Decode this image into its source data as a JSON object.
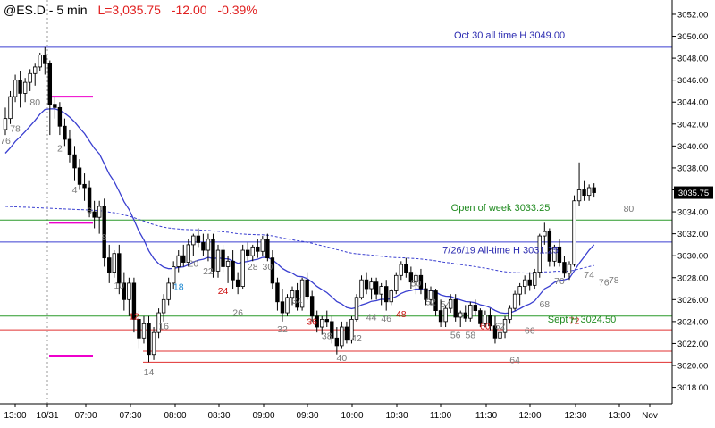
{
  "header": {
    "symbol": "@ES.D - 5 min",
    "last": "L=3,035.75",
    "change": "-12.00",
    "pct": "-0.39%"
  },
  "chart_data": {
    "type": "candlestick",
    "ylim": [
      3016.5,
      3053.3
    ],
    "y_ticks": [
      3018,
      3020,
      3022,
      3024,
      3026,
      3028,
      3030,
      3032,
      3034,
      3036,
      3038,
      3040,
      3042,
      3044,
      3046,
      3048,
      3050,
      3052
    ],
    "x_ticks": [
      "13:00",
      "10/31",
      "07:00",
      "07:30",
      "08:00",
      "08:30",
      "09:00",
      "09:30",
      "10:00",
      "10:30",
      "11:00",
      "11:30",
      "12:00",
      "12:30",
      "13:00",
      "Nov"
    ],
    "last_price_label": "3035.75",
    "colors": {
      "up": "#ffffff",
      "down": "#000000",
      "ema": "#3a3fd0",
      "pivot": "#ee00cc",
      "blue_line": "#3a3fd0",
      "green_line": "#2a9a2a",
      "red_line": "#e03030",
      "bar_label": "#7a7a7a",
      "red_label": "#cc1111",
      "blue_label": "#1a86d0"
    },
    "annotations": [
      {
        "text": "Oct 30 all time H 3049.00",
        "price": 3049.0,
        "color": "blue"
      },
      {
        "text": "Open of week 3033.25",
        "price": 3033.25,
        "color": "green"
      },
      {
        "text": "7/26/19 All-time H 3031.25",
        "price": 3031.25,
        "color": "blue"
      },
      {
        "text": "Sept H 3024.50",
        "price": 3024.5,
        "color": "green"
      }
    ],
    "bar_labels": [
      {
        "t": "76",
        "c": "g",
        "i": 0,
        "p": 3040.2
      },
      {
        "t": "78",
        "c": "g",
        "i": 2,
        "p": 3041.3
      },
      {
        "t": "80",
        "c": "g",
        "i": 6,
        "p": 3043.7
      },
      {
        "t": "2",
        "c": "g",
        "i": 11,
        "p": 3039.5
      },
      {
        "t": "4",
        "c": "g",
        "i": 14,
        "p": 3035.7
      },
      {
        "t": "6",
        "c": "g",
        "i": 17,
        "p": 3033.8
      },
      {
        "t": "8",
        "c": "g",
        "i": 20,
        "p": 3031.4
      },
      {
        "t": "10",
        "c": "g",
        "i": 23,
        "p": 3027.0
      },
      {
        "t": "12",
        "c": "r",
        "i": 26,
        "p": 3024.2
      },
      {
        "t": "14",
        "c": "g",
        "i": 29,
        "p": 3019.1
      },
      {
        "t": "16",
        "c": "g",
        "i": 32,
        "p": 3023.3
      },
      {
        "t": "18",
        "c": "b",
        "i": 35,
        "p": 3026.9
      },
      {
        "t": "20",
        "c": "g",
        "i": 38,
        "p": 3029.0
      },
      {
        "t": "22",
        "c": "g",
        "i": 41,
        "p": 3028.3
      },
      {
        "t": "24",
        "c": "r",
        "i": 44,
        "p": 3026.5
      },
      {
        "t": "26",
        "c": "g",
        "i": 47,
        "p": 3024.5
      },
      {
        "t": "28",
        "c": "g",
        "i": 50,
        "p": 3028.7
      },
      {
        "t": "30",
        "c": "g",
        "i": 53,
        "p": 3028.7
      },
      {
        "t": "32",
        "c": "g",
        "i": 56,
        "p": 3023.0
      },
      {
        "t": "34",
        "c": "g",
        "i": 59,
        "p": 3025.6
      },
      {
        "t": "36",
        "c": "r",
        "i": 62,
        "p": 3023.7
      },
      {
        "t": "38",
        "c": "g",
        "i": 65,
        "p": 3022.4
      },
      {
        "t": "40",
        "c": "g",
        "i": 68,
        "p": 3020.4
      },
      {
        "t": "42",
        "c": "g",
        "i": 71,
        "p": 3022.2
      },
      {
        "t": "44",
        "c": "g",
        "i": 74,
        "p": 3024.1
      },
      {
        "t": "46",
        "c": "g",
        "i": 77,
        "p": 3024.0
      },
      {
        "t": "48",
        "c": "r",
        "i": 80,
        "p": 3024.4
      },
      {
        "t": "50",
        "c": "g",
        "i": 83,
        "p": 3027.2
      },
      {
        "t": "52",
        "c": "g",
        "i": 86,
        "p": 3025.5
      },
      {
        "t": "54",
        "c": "g",
        "i": 89,
        "p": 3025.3
      },
      {
        "t": "56",
        "c": "g",
        "i": 91,
        "p": 3022.5
      },
      {
        "t": "58",
        "c": "g",
        "i": 94,
        "p": 3022.5
      },
      {
        "t": "60",
        "c": "r",
        "i": 97,
        "p": 3023.3
      },
      {
        "t": "62",
        "c": "g",
        "i": 100,
        "p": 3023.3
      },
      {
        "t": "64",
        "c": "g",
        "i": 103,
        "p": 3020.2
      },
      {
        "t": "66",
        "c": "g",
        "i": 106,
        "p": 3022.9
      },
      {
        "t": "68",
        "c": "g",
        "i": 109,
        "p": 3025.3
      },
      {
        "t": "70",
        "c": "g",
        "i": 112,
        "p": 3027.4
      },
      {
        "t": "72",
        "c": "r",
        "i": 115,
        "p": 3023.8
      },
      {
        "t": "74",
        "c": "g",
        "i": 118,
        "p": 3028.0
      },
      {
        "t": "76",
        "c": "g",
        "i": 121,
        "p": 3027.3
      },
      {
        "t": "78",
        "c": "g",
        "i": 123,
        "p": 3027.5
      },
      {
        "t": "80",
        "c": "g",
        "i": 126,
        "p": 3034.0
      }
    ],
    "candles": [
      [
        3041.5,
        3043.5,
        3041.0,
        3042.5
      ],
      [
        3042.5,
        3045.0,
        3042.0,
        3044.5
      ],
      [
        3044.5,
        3046.5,
        3044.0,
        3046.0
      ],
      [
        3046.0,
        3046.8,
        3043.5,
        3044.8
      ],
      [
        3044.8,
        3046.2,
        3044.0,
        3045.8
      ],
      [
        3045.8,
        3047.0,
        3045.0,
        3046.6
      ],
      [
        3046.6,
        3047.5,
        3045.5,
        3047.2
      ],
      [
        3047.2,
        3048.5,
        3046.8,
        3048.3
      ],
      [
        3048.3,
        3049.0,
        3046.5,
        3047.5
      ],
      [
        3047.5,
        3047.8,
        3041.0,
        3043.8
      ],
      [
        3043.8,
        3044.5,
        3042.5,
        3043.5
      ],
      [
        3043.5,
        3044.0,
        3041.0,
        3041.8
      ],
      [
        3041.8,
        3042.5,
        3040.0,
        3040.6
      ],
      [
        3040.6,
        3041.5,
        3038.5,
        3039.2
      ],
      [
        3039.2,
        3040.0,
        3036.8,
        3038.0
      ],
      [
        3038.0,
        3038.8,
        3036.0,
        3036.5
      ],
      [
        3036.5,
        3037.5,
        3035.0,
        3036.2
      ],
      [
        3036.2,
        3036.8,
        3033.5,
        3034.0
      ],
      [
        3034.0,
        3035.0,
        3032.5,
        3033.5
      ],
      [
        3033.5,
        3035.0,
        3032.0,
        3034.5
      ],
      [
        3034.5,
        3035.2,
        3029.0,
        3029.8
      ],
      [
        3029.8,
        3031.0,
        3027.5,
        3028.5
      ],
      [
        3028.5,
        3030.5,
        3028.0,
        3030.2
      ],
      [
        3030.2,
        3031.0,
        3026.5,
        3027.5
      ],
      [
        3027.5,
        3028.5,
        3025.0,
        3026.0
      ],
      [
        3026.0,
        3028.0,
        3024.5,
        3027.5
      ],
      [
        3027.5,
        3028.0,
        3023.0,
        3024.2
      ],
      [
        3024.2,
        3025.0,
        3021.5,
        3022.5
      ],
      [
        3022.5,
        3024.5,
        3022.0,
        3023.8
      ],
      [
        3023.8,
        3024.5,
        3020.3,
        3021.0
      ],
      [
        3021.0,
        3023.5,
        3020.5,
        3023.0
      ],
      [
        3023.0,
        3025.2,
        3022.5,
        3024.8
      ],
      [
        3024.8,
        3026.5,
        3024.0,
        3026.0
      ],
      [
        3026.0,
        3028.0,
        3025.5,
        3027.5
      ],
      [
        3027.5,
        3029.5,
        3027.0,
        3029.0
      ],
      [
        3029.0,
        3030.5,
        3028.5,
        3030.0
      ],
      [
        3030.0,
        3031.0,
        3029.0,
        3029.4
      ],
      [
        3029.4,
        3031.5,
        3029.0,
        3031.0
      ],
      [
        3031.0,
        3032.0,
        3030.0,
        3031.8
      ],
      [
        3031.8,
        3032.5,
        3030.8,
        3031.2
      ],
      [
        3031.2,
        3032.0,
        3030.0,
        3030.5
      ],
      [
        3030.5,
        3032.0,
        3029.5,
        3031.5
      ],
      [
        3031.5,
        3032.0,
        3028.0,
        3028.6
      ],
      [
        3028.6,
        3031.0,
        3028.0,
        3030.5
      ],
      [
        3030.5,
        3031.0,
        3028.5,
        3029.0
      ],
      [
        3029.0,
        3030.0,
        3027.5,
        3029.5
      ],
      [
        3029.5,
        3030.5,
        3027.0,
        3027.8
      ],
      [
        3027.8,
        3028.5,
        3026.5,
        3027.2
      ],
      [
        3027.2,
        3031.0,
        3027.0,
        3030.5
      ],
      [
        3030.5,
        3031.2,
        3029.5,
        3030.0
      ],
      [
        3030.0,
        3031.0,
        3029.5,
        3030.8
      ],
      [
        3030.8,
        3031.5,
        3029.8,
        3030.4
      ],
      [
        3030.4,
        3031.8,
        3030.0,
        3031.5
      ],
      [
        3031.5,
        3032.0,
        3029.5,
        3029.8
      ],
      [
        3029.8,
        3030.5,
        3027.0,
        3027.5
      ],
      [
        3027.5,
        3028.0,
        3025.0,
        3025.8
      ],
      [
        3025.8,
        3027.0,
        3024.0,
        3024.8
      ],
      [
        3024.8,
        3026.5,
        3024.5,
        3026.2
      ],
      [
        3026.2,
        3027.2,
        3025.5,
        3026.8
      ],
      [
        3026.8,
        3027.5,
        3025.0,
        3025.3
      ],
      [
        3025.3,
        3028.0,
        3025.0,
        3027.8
      ],
      [
        3027.8,
        3028.5,
        3026.0,
        3026.3
      ],
      [
        3026.3,
        3026.8,
        3024.0,
        3024.5
      ],
      [
        3024.5,
        3025.0,
        3023.0,
        3023.5
      ],
      [
        3023.5,
        3024.5,
        3022.8,
        3024.2
      ],
      [
        3024.2,
        3025.0,
        3023.5,
        3024.0
      ],
      [
        3024.0,
        3024.5,
        3022.0,
        3022.5
      ],
      [
        3022.5,
        3023.5,
        3021.0,
        3021.8
      ],
      [
        3021.8,
        3024.0,
        3021.5,
        3023.5
      ],
      [
        3023.5,
        3024.0,
        3022.0,
        3022.3
      ],
      [
        3022.3,
        3024.5,
        3022.0,
        3024.2
      ],
      [
        3024.2,
        3026.5,
        3024.0,
        3026.2
      ],
      [
        3026.2,
        3028.2,
        3026.0,
        3027.8
      ],
      [
        3027.8,
        3028.5,
        3026.5,
        3027.0
      ],
      [
        3027.0,
        3028.0,
        3026.0,
        3027.6
      ],
      [
        3027.6,
        3028.0,
        3026.0,
        3026.5
      ],
      [
        3026.5,
        3027.5,
        3025.5,
        3027.2
      ],
      [
        3027.2,
        3027.8,
        3025.0,
        3025.8
      ],
      [
        3025.8,
        3027.0,
        3025.5,
        3026.8
      ],
      [
        3026.8,
        3028.5,
        3026.5,
        3028.2
      ],
      [
        3028.2,
        3029.5,
        3027.8,
        3029.2
      ],
      [
        3029.2,
        3029.8,
        3028.0,
        3028.5
      ],
      [
        3028.5,
        3029.0,
        3027.0,
        3027.6
      ],
      [
        3027.6,
        3028.5,
        3026.5,
        3028.2
      ],
      [
        3028.2,
        3028.8,
        3026.5,
        3027.0
      ],
      [
        3027.0,
        3027.5,
        3025.5,
        3026.0
      ],
      [
        3026.0,
        3027.2,
        3025.5,
        3026.8
      ],
      [
        3026.8,
        3027.0,
        3024.5,
        3025.0
      ],
      [
        3025.0,
        3026.0,
        3023.5,
        3024.0
      ],
      [
        3024.0,
        3025.5,
        3023.5,
        3025.2
      ],
      [
        3025.2,
        3026.5,
        3024.8,
        3026.0
      ],
      [
        3026.0,
        3026.5,
        3024.0,
        3024.4
      ],
      [
        3024.4,
        3025.0,
        3023.5,
        3024.8
      ],
      [
        3024.8,
        3025.5,
        3024.0,
        3024.3
      ],
      [
        3024.3,
        3025.8,
        3024.0,
        3025.5
      ],
      [
        3025.5,
        3026.0,
        3024.5,
        3025.0
      ],
      [
        3025.0,
        3025.2,
        3023.5,
        3023.8
      ],
      [
        3023.8,
        3025.0,
        3023.5,
        3024.6
      ],
      [
        3024.6,
        3025.2,
        3023.2,
        3023.6
      ],
      [
        3023.6,
        3024.5,
        3022.0,
        3022.5
      ],
      [
        3022.5,
        3023.5,
        3021.0,
        3023.0
      ],
      [
        3023.0,
        3024.5,
        3022.5,
        3024.2
      ],
      [
        3024.2,
        3025.5,
        3023.8,
        3025.2
      ],
      [
        3025.2,
        3026.8,
        3025.0,
        3026.5
      ],
      [
        3026.5,
        3027.5,
        3025.5,
        3027.2
      ],
      [
        3027.2,
        3028.2,
        3026.5,
        3027.8
      ],
      [
        3027.8,
        3028.5,
        3026.8,
        3027.3
      ],
      [
        3027.3,
        3028.8,
        3027.0,
        3028.5
      ],
      [
        3028.5,
        3032.0,
        3028.0,
        3031.8
      ],
      [
        3031.8,
        3033.0,
        3031.0,
        3032.2
      ],
      [
        3032.2,
        3032.5,
        3029.0,
        3029.5
      ],
      [
        3029.5,
        3031.0,
        3029.0,
        3030.8
      ],
      [
        3030.8,
        3031.5,
        3029.0,
        3029.4
      ],
      [
        3029.4,
        3030.0,
        3028.0,
        3028.4
      ],
      [
        3028.4,
        3029.5,
        3027.8,
        3029.2
      ],
      [
        3029.2,
        3035.5,
        3029.0,
        3035.0
      ],
      [
        3035.0,
        3038.5,
        3034.5,
        3036.0
      ],
      [
        3036.0,
        3036.8,
        3035.0,
        3035.5
      ],
      [
        3035.5,
        3036.5,
        3035.0,
        3036.2
      ],
      [
        3036.2,
        3036.6,
        3035.3,
        3035.75
      ]
    ]
  }
}
